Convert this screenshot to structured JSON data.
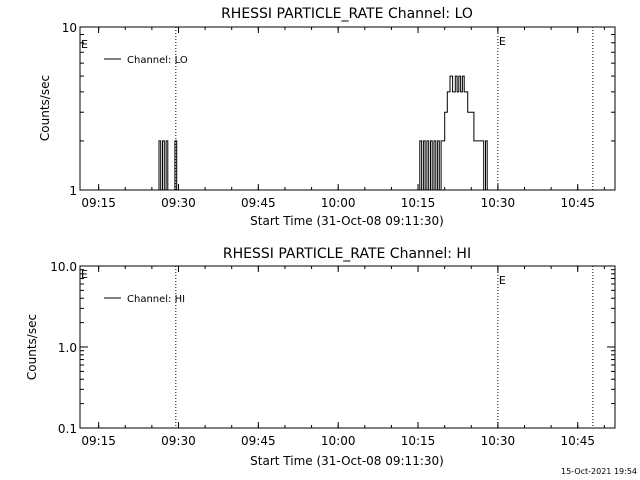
{
  "timestamp": "15-Oct-2021 19:54",
  "chart_data": [
    {
      "type": "line",
      "title": "RHESSI PARTICLE_RATE Channel: LO",
      "xlabel": "Start Time (31-Oct-08 09:11:30)",
      "ylabel": "Counts/sec",
      "y_scale": "log",
      "ylim": [
        1,
        10
      ],
      "y_ticks": [
        {
          "v": 1,
          "label": "1"
        },
        {
          "v": 10,
          "label": "10"
        }
      ],
      "x_ticks": [
        "09:15",
        "09:30",
        "09:45",
        "10:00",
        "10:15",
        "10:30",
        "10:45"
      ],
      "xlim": [
        "09:11:30",
        "10:52:00"
      ],
      "legend": "top-left",
      "legend_label": "Channel: LO",
      "event_lines": [
        {
          "time": "09:29:30",
          "label": ""
        },
        {
          "time": "10:30:00",
          "label": "E"
        },
        {
          "time": "10:47:50",
          "label": ""
        }
      ],
      "left_marker": "E",
      "x": [
        "09:26:00",
        "09:26:20",
        "09:26:40",
        "09:27:00",
        "09:27:20",
        "09:27:40",
        "09:28:00",
        "09:28:20",
        "09:28:40",
        "09:29:00",
        "09:29:20",
        "09:29:40",
        "10:15:00",
        "10:15:20",
        "10:15:40",
        "10:16:00",
        "10:16:20",
        "10:16:40",
        "10:17:00",
        "10:17:20",
        "10:17:40",
        "10:18:00",
        "10:18:20",
        "10:18:40",
        "10:19:00",
        "10:19:20",
        "10:19:40",
        "10:20:00",
        "10:20:30",
        "10:21:00",
        "10:21:30",
        "10:22:00",
        "10:22:20",
        "10:22:40",
        "10:23:00",
        "10:23:20",
        "10:23:40",
        "10:24:00",
        "10:24:20",
        "10:24:40",
        "10:25:00",
        "10:25:30",
        "10:26:00",
        "10:26:30",
        "10:27:00",
        "10:27:20",
        "10:27:40",
        "10:28:00",
        "10:28:20"
      ],
      "series": [
        {
          "values": [
            1,
            2,
            1,
            2,
            1,
            2,
            1,
            1,
            1,
            1,
            2,
            1,
            1,
            2,
            1,
            2,
            1,
            2,
            1,
            2,
            1,
            2,
            1,
            2,
            1,
            2,
            2,
            3,
            4,
            5,
            4,
            5,
            4,
            5,
            4,
            5,
            4,
            4,
            3,
            3,
            3,
            2,
            2,
            2,
            2,
            1,
            2,
            1,
            1
          ]
        }
      ]
    },
    {
      "type": "line",
      "title": "RHESSI PARTICLE_RATE Channel: HI",
      "xlabel": "Start Time (31-Oct-08 09:11:30)",
      "ylabel": "Counts/sec",
      "y_scale": "log",
      "ylim": [
        0.1,
        10
      ],
      "y_ticks": [
        {
          "v": 0.1,
          "label": "0.1"
        },
        {
          "v": 1,
          "label": "1.0"
        },
        {
          "v": 10,
          "label": "10.0"
        }
      ],
      "x_ticks": [
        "09:15",
        "09:30",
        "09:45",
        "10:00",
        "10:15",
        "10:30",
        "10:45"
      ],
      "xlim": [
        "09:11:30",
        "10:52:00"
      ],
      "legend": "top-left",
      "legend_label": "Channel: HI",
      "event_lines": [
        {
          "time": "09:29:30",
          "label": ""
        },
        {
          "time": "10:30:00",
          "label": "E"
        },
        {
          "time": "10:47:50",
          "label": ""
        }
      ],
      "left_marker": "E",
      "x": [],
      "series": []
    }
  ]
}
